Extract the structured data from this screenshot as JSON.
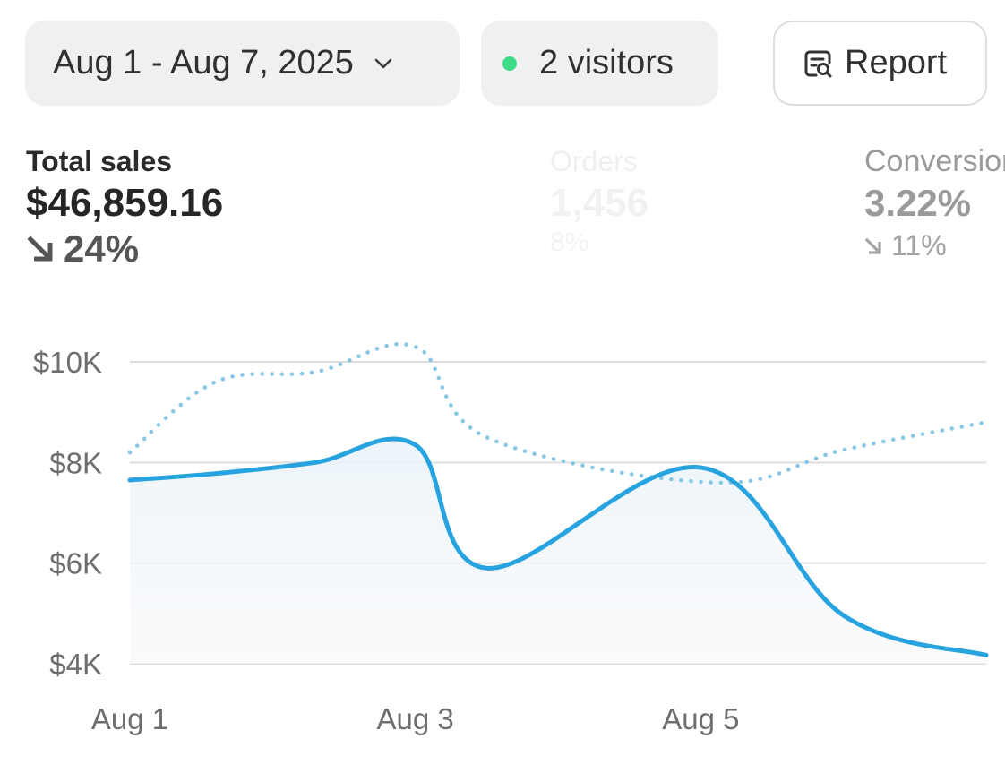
{
  "controls": {
    "date_range": "Aug 1 - Aug 7, 2025",
    "visitors": "2 visitors",
    "visitors_dot_color": "#3ddc84",
    "report": "Report"
  },
  "metrics": [
    {
      "label": "Total sales",
      "value": "$46,859.16",
      "change": "24%",
      "direction": "down"
    },
    {
      "label": "Orders",
      "value": "1,456",
      "change": "8%",
      "direction": "down"
    },
    {
      "label": "Conversion",
      "value": "3.22%",
      "change": "11%",
      "direction": "down"
    }
  ],
  "chart_data": {
    "type": "line",
    "x": [
      1,
      2,
      3,
      4,
      5,
      6,
      7
    ],
    "x_ticks": [
      "Aug 1",
      "Aug 3",
      "Aug 5"
    ],
    "y_ticks": [
      "$10K",
      "$8K",
      "$6K",
      "$4K"
    ],
    "ylim": [
      4000,
      10000
    ],
    "grid": true,
    "series": [
      {
        "style": "solid",
        "color": "#27a3e0",
        "values": [
          7650,
          7780,
          8000,
          8350,
          5900,
          7900,
          4960,
          4170
        ],
        "x": [
          1,
          1.6,
          2.3,
          3.0,
          3.5,
          5.0,
          6.0,
          7.0
        ]
      },
      {
        "style": "dotted",
        "color": "#86c7e6",
        "values": [
          8200,
          9600,
          9800,
          10300,
          8500,
          7600,
          8250,
          8800
        ],
        "x": [
          1,
          1.6,
          2.3,
          3.0,
          3.5,
          5.1,
          6.0,
          7.0
        ]
      }
    ]
  }
}
